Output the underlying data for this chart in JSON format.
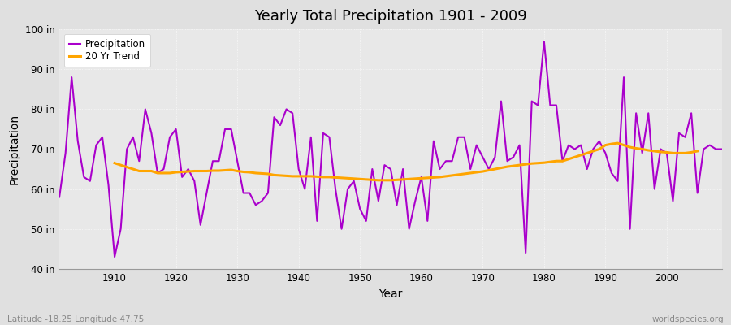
{
  "title": "Yearly Total Precipitation 1901 - 2009",
  "xlabel": "Year",
  "ylabel": "Precipitation",
  "subtitle_left": "Latitude -18.25 Longitude 47.75",
  "subtitle_right": "worldspecies.org",
  "ylim": [
    40,
    100
  ],
  "yticks": [
    40,
    50,
    60,
    70,
    80,
    90,
    100
  ],
  "ytick_labels": [
    "40 in",
    "50 in",
    "60 in",
    "70 in",
    "80 in",
    "90 in",
    "100 in"
  ],
  "xlim": [
    1901,
    2009
  ],
  "xticks": [
    1910,
    1920,
    1930,
    1940,
    1950,
    1960,
    1970,
    1980,
    1990,
    2000
  ],
  "precip_color": "#AA00CC",
  "trend_color": "#FFA500",
  "fig_bg_color": "#E0E0E0",
  "plot_bg_color": "#E8E8E8",
  "legend_precip_label": "Precipitation",
  "legend_trend_label": "20 Yr Trend",
  "years": [
    1901,
    1902,
    1903,
    1904,
    1905,
    1906,
    1907,
    1908,
    1909,
    1910,
    1911,
    1912,
    1913,
    1914,
    1915,
    1916,
    1917,
    1918,
    1919,
    1920,
    1921,
    1922,
    1923,
    1924,
    1925,
    1926,
    1927,
    1928,
    1929,
    1930,
    1931,
    1932,
    1933,
    1934,
    1935,
    1936,
    1937,
    1938,
    1939,
    1940,
    1941,
    1942,
    1943,
    1944,
    1945,
    1946,
    1947,
    1948,
    1949,
    1950,
    1951,
    1952,
    1953,
    1954,
    1955,
    1956,
    1957,
    1958,
    1959,
    1960,
    1961,
    1962,
    1963,
    1964,
    1965,
    1966,
    1967,
    1968,
    1969,
    1970,
    1971,
    1972,
    1973,
    1974,
    1975,
    1976,
    1977,
    1978,
    1979,
    1980,
    1981,
    1982,
    1983,
    1984,
    1985,
    1986,
    1987,
    1988,
    1989,
    1990,
    1991,
    1992,
    1993,
    1994,
    1995,
    1996,
    1997,
    1998,
    1999,
    2000,
    2001,
    2002,
    2003,
    2004,
    2005,
    2006,
    2007,
    2008,
    2009
  ],
  "precip": [
    58,
    69,
    88,
    72,
    63,
    62,
    71,
    73,
    61,
    43,
    50,
    70,
    73,
    67,
    80,
    74,
    64,
    65,
    73,
    75,
    63,
    65,
    62,
    51,
    59,
    67,
    67,
    75,
    75,
    67,
    59,
    59,
    56,
    57,
    59,
    78,
    76,
    80,
    79,
    65,
    60,
    73,
    52,
    74,
    73,
    60,
    50,
    60,
    62,
    55,
    52,
    65,
    57,
    66,
    65,
    56,
    65,
    50,
    57,
    63,
    52,
    72,
    65,
    67,
    67,
    73,
    73,
    65,
    71,
    68,
    65,
    68,
    82,
    67,
    68,
    71,
    44,
    82,
    81,
    97,
    81,
    81,
    67,
    71,
    70,
    71,
    65,
    70,
    72,
    69,
    64,
    62,
    88,
    50,
    79,
    69,
    79,
    60,
    70,
    69,
    57,
    74,
    73,
    79,
    59,
    70,
    71,
    70,
    70
  ],
  "trend": [
    null,
    null,
    null,
    null,
    null,
    null,
    null,
    null,
    null,
    66.5,
    66.0,
    65.5,
    65.0,
    64.5,
    64.5,
    64.5,
    64.0,
    64.0,
    64.0,
    64.2,
    64.3,
    64.4,
    64.5,
    64.5,
    64.5,
    64.6,
    64.6,
    64.7,
    64.8,
    64.5,
    64.3,
    64.2,
    64.0,
    63.9,
    63.8,
    63.5,
    63.4,
    63.3,
    63.2,
    63.2,
    63.2,
    63.2,
    63.1,
    63.0,
    63.0,
    62.9,
    62.8,
    62.7,
    62.6,
    62.5,
    62.4,
    62.3,
    62.2,
    62.2,
    62.2,
    62.3,
    62.4,
    62.5,
    62.6,
    62.7,
    62.8,
    62.9,
    63.0,
    63.2,
    63.4,
    63.6,
    63.8,
    64.0,
    64.2,
    64.4,
    64.7,
    65.0,
    65.3,
    65.6,
    65.8,
    66.0,
    66.2,
    66.4,
    66.5,
    66.6,
    66.8,
    67.0,
    67.0,
    67.5,
    68.0,
    68.5,
    69.0,
    69.5,
    70.0,
    71.0,
    71.3,
    71.5,
    71.0,
    70.5,
    70.2,
    70.0,
    69.7,
    69.5,
    69.3,
    69.2,
    69.0,
    69.0,
    69.0,
    69.2,
    69.5,
    null,
    null,
    null,
    null
  ]
}
